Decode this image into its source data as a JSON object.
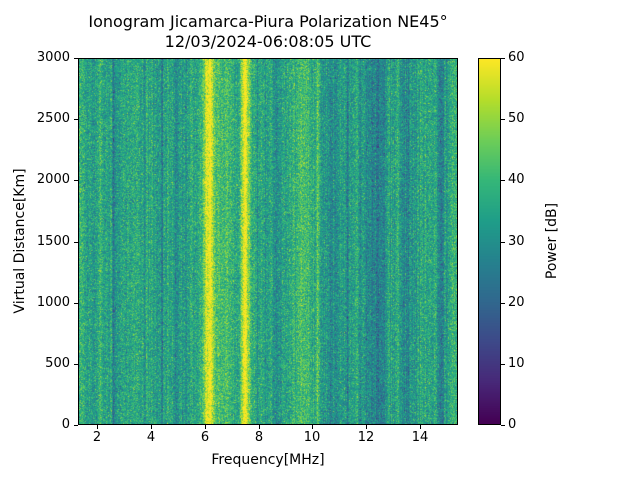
{
  "figure": {
    "background": "#ffffff"
  },
  "chart_data": {
    "type": "heatmap",
    "title": "Ionogram Jicamarca-Piura Polarization NE45°",
    "subtitle": "12/03/2024-06:08:05 UTC",
    "xlabel": "Frequency[MHz]",
    "ylabel": "Virtual Distance[Km]",
    "colorbar_label": "Power [dB]",
    "xlim": [
      1.3,
      15.4
    ],
    "ylim": [
      0,
      3000
    ],
    "clim": [
      0,
      60
    ],
    "xticks": [
      2,
      4,
      6,
      8,
      10,
      12,
      14
    ],
    "yticks": [
      0,
      500,
      1000,
      1500,
      2000,
      2500,
      3000
    ],
    "colorbar_ticks": [
      0,
      10,
      20,
      30,
      40,
      50,
      60
    ],
    "legend_position": "right-colorbar",
    "grid": false,
    "colormap": "viridis",
    "colormap_stops": [
      "#440154",
      "#482878",
      "#3e4989",
      "#31688e",
      "#26828e",
      "#1f9e89",
      "#35b779",
      "#6ece58",
      "#b5de2b",
      "#fde725"
    ],
    "background_power_db": 34,
    "noise_std_db": 5.5,
    "column_noise_std_db": 2.2,
    "vertical_bands": [
      {
        "freq_mhz": 1.45,
        "width_mhz": 0.15,
        "delta_db": 5
      },
      {
        "freq_mhz": 2.1,
        "width_mhz": 0.1,
        "delta_db": 4
      },
      {
        "freq_mhz": 2.6,
        "width_mhz": 0.05,
        "delta_db": -7
      },
      {
        "freq_mhz": 3.3,
        "width_mhz": 0.25,
        "delta_db": 2
      },
      {
        "freq_mhz": 3.75,
        "width_mhz": 0.06,
        "delta_db": -5
      },
      {
        "freq_mhz": 4.4,
        "width_mhz": 0.07,
        "delta_db": -6
      },
      {
        "freq_mhz": 4.95,
        "width_mhz": 0.08,
        "delta_db": -7
      },
      {
        "freq_mhz": 5.5,
        "width_mhz": 0.1,
        "delta_db": 4
      },
      {
        "freq_mhz": 6.15,
        "width_mhz": 0.32,
        "delta_db": 26
      },
      {
        "freq_mhz": 6.7,
        "width_mhz": 0.45,
        "delta_db": 7
      },
      {
        "freq_mhz": 7.5,
        "width_mhz": 0.16,
        "delta_db": 25
      },
      {
        "freq_mhz": 7.5,
        "width_mhz": 0.5,
        "delta_db": 5
      },
      {
        "freq_mhz": 7.95,
        "width_mhz": 0.05,
        "delta_db": -6
      },
      {
        "freq_mhz": 8.65,
        "width_mhz": 0.1,
        "delta_db": -8
      },
      {
        "freq_mhz": 9.15,
        "width_mhz": 0.07,
        "delta_db": 4
      },
      {
        "freq_mhz": 9.65,
        "width_mhz": 0.45,
        "delta_db": 8
      },
      {
        "freq_mhz": 10.2,
        "width_mhz": 0.06,
        "delta_db": 8
      },
      {
        "freq_mhz": 10.75,
        "width_mhz": 0.35,
        "delta_db": -5
      },
      {
        "freq_mhz": 11.3,
        "width_mhz": 0.08,
        "delta_db": -6
      },
      {
        "freq_mhz": 11.8,
        "width_mhz": 0.1,
        "delta_db": -4
      },
      {
        "freq_mhz": 12.4,
        "width_mhz": 0.45,
        "delta_db": -9
      },
      {
        "freq_mhz": 13.2,
        "width_mhz": 0.06,
        "delta_db": 7
      },
      {
        "freq_mhz": 13.5,
        "width_mhz": 0.22,
        "delta_db": -7
      },
      {
        "freq_mhz": 13.95,
        "width_mhz": 0.06,
        "delta_db": 4
      },
      {
        "freq_mhz": 14.4,
        "width_mhz": 0.07,
        "delta_db": 7
      },
      {
        "freq_mhz": 14.8,
        "width_mhz": 0.18,
        "delta_db": -8
      },
      {
        "freq_mhz": 15.25,
        "width_mhz": 0.12,
        "delta_db": 6
      }
    ]
  }
}
